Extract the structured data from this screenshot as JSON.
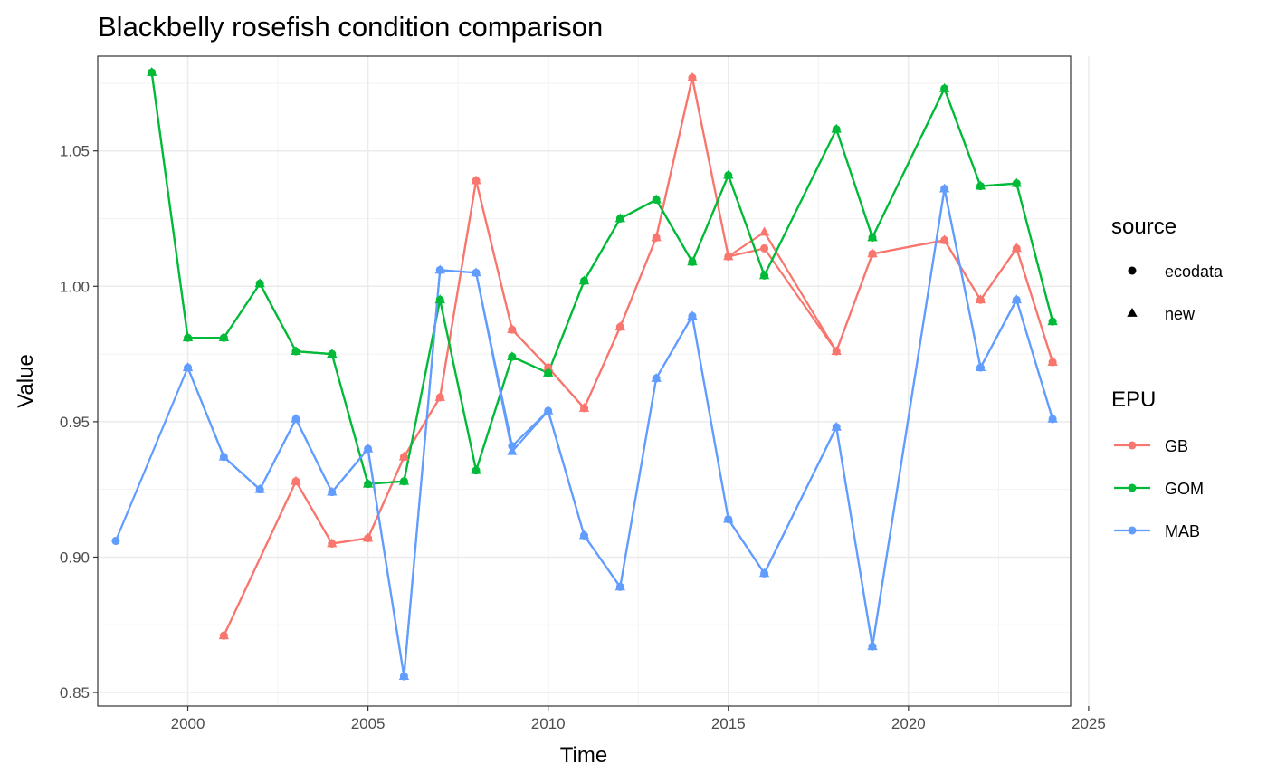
{
  "chart_data": {
    "type": "line",
    "title": "Blackbelly rosefish condition comparison",
    "xlabel": "Time",
    "ylabel": "Value",
    "xlim": [
      1997.5,
      2024.5
    ],
    "ylim": [
      0.845,
      1.085
    ],
    "x_ticks": [
      2000,
      2005,
      2010,
      2015,
      2020,
      2025
    ],
    "y_ticks": [
      0.85,
      0.9,
      0.95,
      1.0,
      1.05
    ],
    "y_tick_labels": [
      "0.85",
      "0.90",
      "0.95",
      "1.00",
      "1.05"
    ],
    "grid": true,
    "legend": {
      "placement": "right",
      "source_title": "source",
      "source_items": [
        {
          "label": "ecodata",
          "shape": "circle"
        },
        {
          "label": "new",
          "shape": "triangle"
        }
      ],
      "epu_title": "EPU"
    },
    "series": [
      {
        "name": "GB",
        "color": "#F8766D",
        "x": [
          2001,
          2003,
          2004,
          2005,
          2006,
          2007,
          2008,
          2009,
          2010,
          2011,
          2012,
          2013,
          2014,
          2015,
          2016,
          2018,
          2019,
          2021,
          2022,
          2023,
          2024
        ],
        "ecodata": [
          0.871,
          0.928,
          0.905,
          0.907,
          0.937,
          0.959,
          1.039,
          0.984,
          0.97,
          0.955,
          0.985,
          1.018,
          1.077,
          1.011,
          1.014,
          0.976,
          1.012,
          1.017,
          0.995,
          1.014,
          0.972
        ],
        "new": [
          0.871,
          0.928,
          0.905,
          0.907,
          0.937,
          0.959,
          1.039,
          0.984,
          0.97,
          0.955,
          0.985,
          1.018,
          1.077,
          1.011,
          1.02,
          0.976,
          1.012,
          1.017,
          0.995,
          1.014,
          0.972
        ]
      },
      {
        "name": "GOM",
        "color": "#00BA38",
        "x": [
          1999,
          2000,
          2001,
          2002,
          2003,
          2004,
          2005,
          2006,
          2007,
          2008,
          2009,
          2010,
          2011,
          2012,
          2013,
          2014,
          2015,
          2016,
          2018,
          2019,
          2021,
          2022,
          2023,
          2024
        ],
        "ecodata": [
          1.079,
          0.981,
          0.981,
          1.001,
          0.976,
          0.975,
          0.927,
          0.928,
          0.995,
          0.932,
          0.974,
          0.968,
          1.002,
          1.025,
          1.032,
          1.009,
          1.041,
          1.004,
          1.058,
          1.018,
          1.073,
          1.037,
          1.038,
          0.987
        ],
        "new": [
          1.079,
          0.981,
          0.981,
          1.001,
          0.976,
          0.975,
          0.927,
          0.928,
          0.995,
          0.932,
          0.974,
          0.968,
          1.002,
          1.025,
          1.032,
          1.009,
          1.041,
          1.004,
          1.058,
          1.018,
          1.073,
          1.037,
          1.038,
          0.987
        ]
      },
      {
        "name": "MAB",
        "color": "#619CFF",
        "x": [
          1998,
          2000,
          2001,
          2002,
          2003,
          2004,
          2005,
          2006,
          2007,
          2008,
          2009,
          2010,
          2011,
          2012,
          2013,
          2014,
          2015,
          2016,
          2018,
          2019,
          2021,
          2022,
          2023,
          2024
        ],
        "ecodata": [
          0.906,
          0.97,
          0.937,
          0.925,
          0.951,
          0.924,
          0.94,
          0.856,
          1.006,
          1.005,
          0.941,
          0.954,
          0.908,
          0.889,
          0.966,
          0.989,
          0.914,
          0.894,
          0.948,
          0.867,
          1.036,
          0.97,
          0.995,
          0.951
        ],
        "new": [
          null,
          0.97,
          0.937,
          0.925,
          0.951,
          0.924,
          0.94,
          0.856,
          1.006,
          1.005,
          0.939,
          0.954,
          0.908,
          0.889,
          0.966,
          0.989,
          0.914,
          0.894,
          0.948,
          0.867,
          1.036,
          0.97,
          0.995,
          0.951
        ]
      }
    ]
  }
}
